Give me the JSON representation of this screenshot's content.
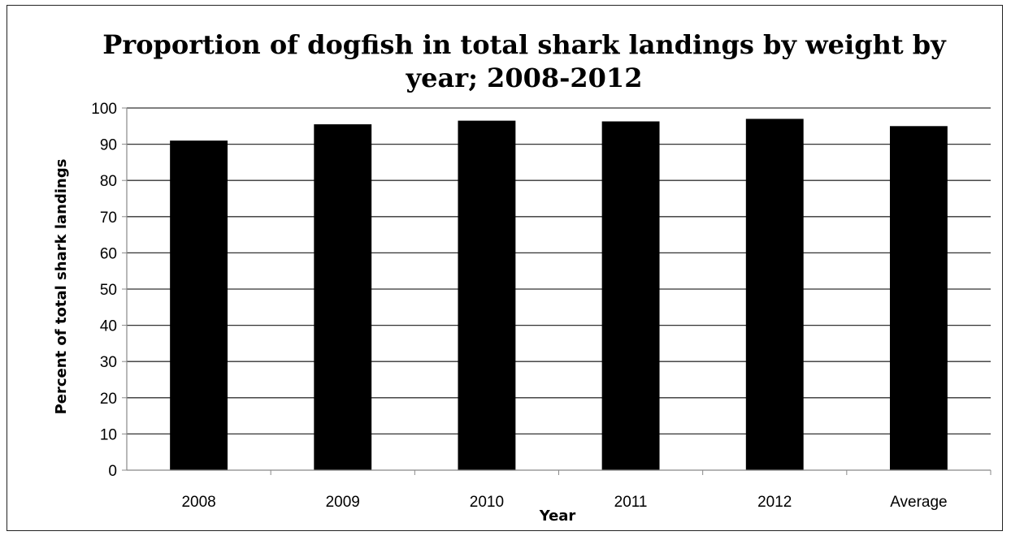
{
  "chart_data": {
    "type": "bar",
    "title_line1": "Proportion of dogfish in total shark landings by weight by",
    "title_line2": "year; 2008-2012",
    "xlabel": "Year",
    "ylabel": "Percent of total shark landings",
    "categories": [
      "2008",
      "2009",
      "2010",
      "2011",
      "2012",
      "Average"
    ],
    "values": [
      91,
      95.5,
      96.5,
      96.3,
      97,
      95
    ],
    "ylim": [
      0,
      100
    ],
    "ytick_step": 10,
    "grid": true,
    "legend": "none",
    "bar_color": "#000000",
    "grid_color": "#333333",
    "axis_color": "#888888"
  }
}
